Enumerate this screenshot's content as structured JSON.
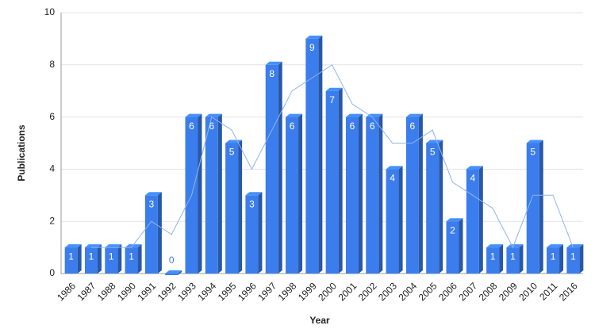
{
  "chart_data": {
    "type": "bar",
    "x_label": "Year",
    "y_label": "Publications",
    "categories": [
      "1986",
      "1987",
      "1988",
      "1990",
      "1991",
      "1992",
      "1993",
      "1994",
      "1995",
      "1996",
      "1997",
      "1998",
      "1999",
      "2000",
      "2001",
      "2002",
      "2003",
      "2004",
      "2005",
      "2006",
      "2007",
      "2008",
      "2009",
      "2010",
      "2011",
      "2016"
    ],
    "series": [
      {
        "type": "bar",
        "color": "#3b7ded",
        "values": [
          1,
          1,
          1,
          1,
          3,
          0,
          6,
          6,
          5,
          3,
          8,
          6,
          9,
          7,
          6,
          6,
          4,
          6,
          5,
          2,
          4,
          1,
          1,
          5,
          1,
          1
        ]
      },
      {
        "type": "line",
        "color": "#8fb4f0",
        "values": [
          null,
          1,
          1,
          1,
          2,
          1.5,
          3,
          6,
          5.5,
          4,
          5.5,
          7,
          7.5,
          8,
          6.5,
          6,
          5,
          5,
          5.5,
          3.5,
          3,
          2.5,
          1,
          3,
          3,
          1
        ]
      }
    ],
    "ylim": [
      0,
      10
    ],
    "yticks": [
      0,
      2,
      4,
      6,
      8,
      10
    ],
    "grid": true
  }
}
